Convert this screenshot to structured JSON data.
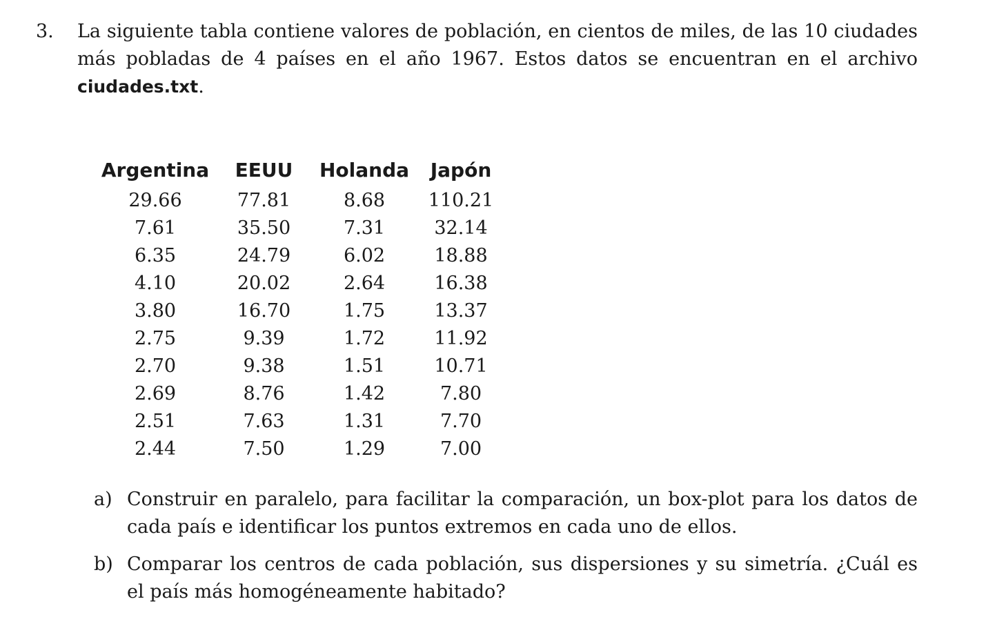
{
  "problem": {
    "number": "3.",
    "intro_text": "La siguiente tabla contiene valores de población, en cientos de miles, de las 10 ciudades más pobladas de 4 países en el año 1967. Estos datos se encuentran en el archivo ",
    "filename": "ciudades.txt",
    "intro_end": "."
  },
  "table": {
    "headers": [
      "Argentina",
      "EEUU",
      "Holanda",
      "Japón"
    ],
    "rows": [
      [
        "29.66",
        "77.81",
        "8.68",
        "110.21"
      ],
      [
        "7.61",
        "35.50",
        "7.31",
        "32.14"
      ],
      [
        "6.35",
        "24.79",
        "6.02",
        "18.88"
      ],
      [
        "4.10",
        "20.02",
        "2.64",
        "16.38"
      ],
      [
        "3.80",
        "16.70",
        "1.75",
        "13.37"
      ],
      [
        "2.75",
        "9.39",
        "1.72",
        "11.92"
      ],
      [
        "2.70",
        "9.38",
        "1.51",
        "10.71"
      ],
      [
        "2.69",
        "8.76",
        "1.42",
        "7.80"
      ],
      [
        "2.51",
        "7.63",
        "1.31",
        "7.70"
      ],
      [
        "2.44",
        "7.50",
        "1.29",
        "7.00"
      ]
    ]
  },
  "subitems": [
    {
      "label": "a)",
      "text": "Construir en paralelo, para facilitar la comparación, un box-plot para los datos de cada país e identificar los puntos extremos en cada uno de ellos."
    },
    {
      "label": "b)",
      "text": "Comparar los centros de cada población, sus dispersiones y su simetría. ¿Cuál es el país más homogéneamente habitado?"
    }
  ]
}
